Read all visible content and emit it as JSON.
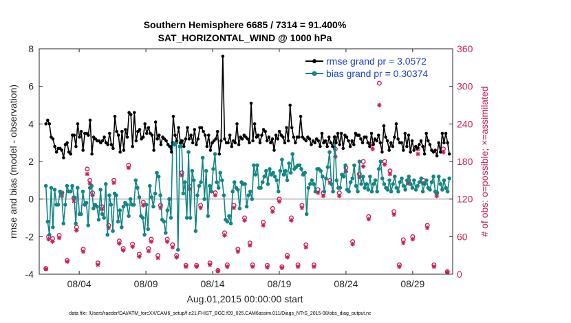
{
  "chart_data": {
    "type": "line",
    "title_line1": "Southern Hemisphere 6685 / 7314 = 91.400%",
    "title_line2": "SAT_HORIZONTAL_WIND @ 1000 hPa",
    "xlabel": "Aug.01,2015 00:00:00 start",
    "ylabel": "rmse and bias (model - observation)",
    "ylabel_right": "# of obs: o=possible; ×=assimilated",
    "footnote": "data file: /Users/raeder/DAI/ATM_forcXX/CAM6_setup/f.e21.FHIST_BGC.f09_025.CAM6assim.011/Diags_NTrS_2015-08/obs_diag_output.nc",
    "xlim": [
      0.5,
      31.5
    ],
    "ylim": [
      -4,
      8
    ],
    "ylim_right": [
      0,
      360
    ],
    "x_ticks": [
      3.5,
      8.5,
      13.5,
      18.5,
      23.5,
      28.5
    ],
    "x_tick_labels": [
      "08/04",
      "08/09",
      "08/14",
      "08/19",
      "08/24",
      "08/29"
    ],
    "y_ticks": [
      -4,
      -2,
      0,
      2,
      4,
      6,
      8
    ],
    "y_tick_labels": [
      "-4",
      "-2",
      "0",
      "2",
      "4",
      "6",
      "8"
    ],
    "y_right_ticks": [
      0,
      60,
      120,
      180,
      240,
      300,
      360
    ],
    "y_right_tick_labels": [
      "0",
      "60",
      "120",
      "180",
      "240",
      "300",
      "360"
    ],
    "colors": {
      "rmse": "#000000",
      "bias": "#128585",
      "obs": "#cc1f55",
      "zero_line": "#b0b0b0"
    },
    "series": [
      {
        "name": "rmse grand pr = 3.0572",
        "values": [
          4.0,
          4.2,
          4.0,
          3.3,
          3.2,
          2.8,
          2.5,
          2.7,
          2.7,
          2.6,
          2.2,
          2.9,
          3.0,
          2.5,
          2.4,
          3.4,
          3.4,
          2.8,
          4.0,
          3.3,
          3.6,
          2.6,
          3.5,
          3.5,
          3.4,
          4.2,
          2.4,
          3.3,
          3.2,
          3.1,
          3.1,
          3.0,
          3.1,
          3.3,
          3.0,
          2.9,
          3.5,
          2.9,
          2.7,
          4.4,
          3.6,
          3.4,
          2.5,
          3.6,
          2.6,
          3.7,
          3.3,
          4.6,
          4.5,
          2.8,
          4.6,
          3.1,
          3.6,
          3.7,
          3.2,
          3.3,
          4.0,
          3.5,
          3.8,
          3.5,
          3.4,
          2.6,
          4.1,
          3.2,
          3.4,
          2.9,
          3.3,
          3.2,
          3.1,
          2.9,
          2.8,
          2.5,
          4.4,
          3.4,
          3.1,
          3.8,
          3.0,
          3.1,
          2.8,
          3.2,
          3.8,
          3.2,
          3.4,
          3.0,
          3.7,
          2.9,
          3.2,
          3.8,
          3.8,
          3.6,
          3.4,
          2.8,
          3.4,
          2.6,
          3.0,
          3.1,
          3.2,
          3.6,
          2.4,
          3.1,
          7.6,
          3.2,
          3.0,
          3.0,
          3.4,
          2.8,
          3.1,
          3.0,
          4.0,
          2.9,
          3.3,
          3.2,
          3.4,
          3.3,
          3.2,
          3.0,
          5.1,
          3.1,
          4.0,
          3.3,
          3.4,
          3.0,
          3.4,
          3.7,
          3.6,
          3.1,
          3.3,
          3.0,
          3.2,
          2.6,
          3.4,
          3.2,
          3.6,
          3.4,
          3.3,
          3.0,
          3.8,
          3.1,
          5.0,
          3.8,
          3.3,
          3.0,
          3.3,
          3.3,
          4.4,
          3.3,
          3.2,
          3.1,
          3.3,
          3.2,
          2.9,
          3.1,
          3.0,
          3.2,
          3.1,
          2.8,
          3.5,
          3.0,
          3.1,
          2.8,
          3.3,
          3.0,
          2.8,
          3.3,
          3.0,
          3.5,
          2.9,
          3.5,
          2.7,
          3.4,
          3.3,
          3.1,
          2.8,
          3.1,
          2.9,
          3.5,
          3.4,
          3.4,
          3.2,
          3.0,
          3.3,
          3.3,
          3.0,
          2.8,
          3.5,
          2.9,
          3.2,
          3.1,
          3.4,
          3.0,
          2.5,
          3.9,
          3.3,
          3.1,
          2.6,
          3.0,
          2.8,
          3.3,
          4.0,
          3.2,
          3.0,
          3.0,
          2.6,
          3.5,
          2.8,
          3.4,
          2.5,
          3.1,
          2.6,
          2.8,
          2.7,
          2.9,
          3.1,
          2.8,
          2.4,
          3.5,
          3.1,
          2.9,
          2.6,
          2.5,
          2.6,
          2.3,
          3.0,
          2.5,
          3.5,
          3.0,
          3.5,
          3.0,
          2.4
        ]
      },
      {
        "name": "bias grand pr = 0.30374",
        "values": [
          0.7,
          -1.2,
          -1.9,
          0.6,
          -1.5,
          0.5,
          -0.3,
          -0.3,
          0.4,
          0.3,
          -1.3,
          -0.3,
          0.7,
          0.4,
          0.4,
          0.7,
          0.1,
          -1.3,
          0.6,
          -0.8,
          -0.8,
          0.4,
          -0.3,
          -0.2,
          -1.4,
          0.6,
          0.7,
          -0.5,
          -0.3,
          -0.4,
          -1.1,
          0.5,
          -0.8,
          -1.0,
          0.8,
          -1.9,
          0.2,
          -0.3,
          -1.7,
          0.3,
          0.2,
          -1.2,
          -0.6,
          -1.5,
          -0.4,
          -0.2,
          -0.3,
          -0.9,
          0.0,
          -0.3,
          -0.3,
          1.0,
          0.6,
          0.1,
          -0.9,
          -1.0,
          -1.9,
          -0.3,
          -1.6,
          0.7,
          0.1,
          -0.4,
          0.3,
          1.4,
          1.2,
          0.2,
          -1.1,
          -1.2,
          -1.8,
          -0.6,
          0.0,
          -1.0,
          3.0,
          2.9,
          3.0,
          -2.7,
          2.8,
          3.1,
          0.3,
          0.9,
          -1.0,
          2.5,
          -1.0,
          1.5,
          1.0,
          -1.7,
          0.2,
          0.7,
          0.9,
          2.2,
          0.0,
          1.5,
          -0.9,
          0.7,
          0.4,
          1.6,
          2.4,
          0.9,
          0.6,
          1.4,
          1.0,
          0.2,
          -1.1,
          -1.2,
          -0.9,
          -1.3,
          0.4,
          0.9,
          0.6,
          0.5,
          -0.5,
          0.9,
          0.8,
          0.8,
          -0.4,
          0.2,
          0.4,
          0.0,
          1.8,
          1.3,
          1.8,
          0.6,
          0.6,
          0.9,
          1.2,
          1.5,
          0.8,
          1.6,
          1.3,
          1.4,
          1.2,
          1.0,
          0.4,
          1.5,
          2.1,
          1.3,
          1.5,
          1.0,
          1.9,
          1.4,
          2.4,
          1.6,
          1.7,
          1.8,
          1.8,
          1.6,
          1.3,
          1.4,
          -0.8,
          0.6,
          0.8,
          1.0,
          0.8,
          0.4,
          1.6,
          1.6,
          1.5,
          1.2,
          0.4,
          1.1,
          1.7,
          2.5,
          0.8,
          0.4,
          3.3,
          1.0,
          0.6,
          0.6,
          1.3,
          1.2,
          1.8,
          0.5,
          0.4,
          0.9,
          1.1,
          1.8,
          0.7,
          0.4,
          2.0,
          0.8,
          1.2,
          0.6,
          0.8,
          0.5,
          1.2,
          0.4,
          0.8,
          1.0,
          0.4,
          1.6,
          2.0,
          1.1,
          0.8,
          0.6,
          0.5,
          1.0,
          0.4,
          0.8,
          1.2,
          0.6,
          0.4,
          0.9,
          1.1,
          0.7,
          0.5,
          1.0,
          1.2,
          0.8,
          0.6,
          1.0,
          0.5,
          0.7,
          0.9,
          1.1,
          0.4,
          0.8,
          1.0,
          0.6,
          0.5,
          0.9,
          1.2,
          0.4,
          0.3,
          1.2,
          0.8,
          0.5,
          1.0,
          0.6,
          0.4,
          1.1
        ]
      }
    ],
    "obs_possible_points": [
      [
        1.0,
        9
      ],
      [
        1.2,
        60
      ],
      [
        1.5,
        57
      ],
      [
        2.0,
        62
      ],
      [
        2.2,
        130
      ],
      [
        2.6,
        22
      ],
      [
        3.1,
        122
      ],
      [
        3.3,
        75
      ],
      [
        3.8,
        40
      ],
      [
        4.1,
        168
      ],
      [
        4.3,
        150
      ],
      [
        4.5,
        130
      ],
      [
        4.9,
        18
      ],
      [
        5.2,
        108
      ],
      [
        5.7,
        78
      ],
      [
        6.1,
        150
      ],
      [
        6.5,
        53
      ],
      [
        6.8,
        41
      ],
      [
        7.2,
        174
      ],
      [
        7.5,
        48
      ],
      [
        8.0,
        32
      ],
      [
        8.3,
        115
      ],
      [
        8.7,
        41
      ],
      [
        8.9,
        56
      ],
      [
        9.4,
        30
      ],
      [
        9.6,
        110
      ],
      [
        10.1,
        56
      ],
      [
        10.5,
        47
      ],
      [
        10.8,
        30
      ],
      [
        11.2,
        162
      ],
      [
        11.5,
        14
      ],
      [
        11.8,
        140
      ],
      [
        12.3,
        14
      ],
      [
        12.6,
        110
      ],
      [
        13.3,
        18
      ],
      [
        13.7,
        130
      ],
      [
        13.9,
        6
      ],
      [
        14.4,
        66
      ],
      [
        14.6,
        15
      ],
      [
        15.1,
        110
      ],
      [
        15.4,
        40
      ],
      [
        15.9,
        90
      ],
      [
        16.3,
        50
      ],
      [
        16.5,
        15
      ],
      [
        17.3,
        83
      ],
      [
        17.6,
        14
      ],
      [
        18.0,
        105
      ],
      [
        18.5,
        120
      ],
      [
        18.7,
        12
      ],
      [
        19.1,
        30
      ],
      [
        19.4,
        90
      ],
      [
        19.9,
        15
      ],
      [
        20.2,
        110
      ],
      [
        20.5,
        47
      ],
      [
        21.1,
        15
      ],
      [
        21.4,
        135
      ],
      [
        21.8,
        130
      ],
      [
        22.3,
        150
      ],
      [
        22.7,
        200
      ],
      [
        23.0,
        130
      ],
      [
        23.5,
        170
      ],
      [
        24.0,
        52
      ],
      [
        24.5,
        160
      ],
      [
        24.8,
        180
      ],
      [
        25.2,
        92
      ],
      [
        25.5,
        208
      ],
      [
        26.0,
        305
      ],
      [
        26.4,
        180
      ],
      [
        26.8,
        165
      ],
      [
        27.1,
        100
      ],
      [
        27.5,
        15
      ],
      [
        27.8,
        55
      ],
      [
        28.2,
        150
      ],
      [
        28.5,
        60
      ],
      [
        28.9,
        200
      ],
      [
        29.3,
        150
      ],
      [
        29.6,
        78
      ],
      [
        30.1,
        15
      ],
      [
        30.3,
        130
      ],
      [
        30.8,
        200
      ],
      [
        31.1,
        4
      ]
    ],
    "obs_assimilated_points": [
      [
        1.0,
        8
      ],
      [
        1.2,
        56
      ],
      [
        1.5,
        52
      ],
      [
        2.0,
        58
      ],
      [
        2.2,
        125
      ],
      [
        2.6,
        20
      ],
      [
        3.1,
        117
      ],
      [
        3.3,
        70
      ],
      [
        3.8,
        36
      ],
      [
        4.1,
        160
      ],
      [
        4.3,
        145
      ],
      [
        4.5,
        126
      ],
      [
        4.9,
        15
      ],
      [
        5.2,
        104
      ],
      [
        5.7,
        74
      ],
      [
        6.1,
        146
      ],
      [
        6.5,
        49
      ],
      [
        6.8,
        38
      ],
      [
        7.2,
        170
      ],
      [
        7.5,
        44
      ],
      [
        8.0,
        28
      ],
      [
        8.3,
        110
      ],
      [
        8.7,
        37
      ],
      [
        8.9,
        52
      ],
      [
        9.4,
        26
      ],
      [
        9.6,
        106
      ],
      [
        10.1,
        52
      ],
      [
        10.5,
        43
      ],
      [
        10.8,
        27
      ],
      [
        11.2,
        158
      ],
      [
        11.5,
        12
      ],
      [
        11.8,
        136
      ],
      [
        12.3,
        12
      ],
      [
        12.6,
        106
      ],
      [
        13.3,
        15
      ],
      [
        13.7,
        126
      ],
      [
        13.9,
        5
      ],
      [
        14.4,
        62
      ],
      [
        14.6,
        12
      ],
      [
        15.1,
        106
      ],
      [
        15.4,
        36
      ],
      [
        15.9,
        86
      ],
      [
        16.3,
        46
      ],
      [
        16.5,
        12
      ],
      [
        17.3,
        78
      ],
      [
        17.6,
        11
      ],
      [
        18.0,
        100
      ],
      [
        18.5,
        116
      ],
      [
        18.7,
        10
      ],
      [
        19.1,
        27
      ],
      [
        19.4,
        86
      ],
      [
        19.9,
        12
      ],
      [
        20.2,
        106
      ],
      [
        20.5,
        43
      ],
      [
        21.1,
        12
      ],
      [
        21.4,
        130
      ],
      [
        21.8,
        125
      ],
      [
        22.3,
        146
      ],
      [
        22.7,
        188
      ],
      [
        23.0,
        125
      ],
      [
        23.5,
        164
      ],
      [
        24.0,
        48
      ],
      [
        24.5,
        155
      ],
      [
        24.8,
        172
      ],
      [
        25.2,
        88
      ],
      [
        25.5,
        200
      ],
      [
        26.0,
        270
      ],
      [
        26.4,
        175
      ],
      [
        26.8,
        160
      ],
      [
        27.1,
        95
      ],
      [
        27.5,
        12
      ],
      [
        27.8,
        50
      ],
      [
        28.2,
        145
      ],
      [
        28.5,
        56
      ],
      [
        28.9,
        192
      ],
      [
        29.3,
        145
      ],
      [
        29.6,
        74
      ],
      [
        30.1,
        12
      ],
      [
        30.3,
        125
      ],
      [
        30.8,
        195
      ],
      [
        31.1,
        3
      ]
    ]
  }
}
